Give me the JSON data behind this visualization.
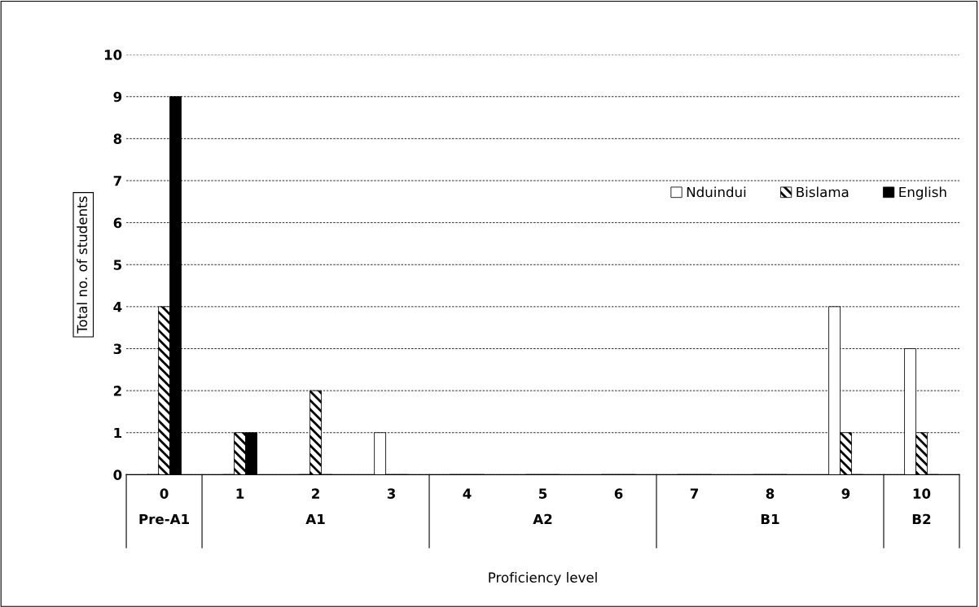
{
  "chart_data": {
    "type": "bar",
    "xlabel": "Proficiency level",
    "ylabel": "Total no. of students",
    "categories": [
      "0\nPre-A1",
      "1",
      "2\nA1",
      "3",
      "4",
      "5\nA2",
      "6",
      "7",
      "8\nB1",
      "9",
      "10\nB2"
    ],
    "series": [
      {
        "name": "Nduindui",
        "color": "#ffffff",
        "values": [
          0,
          0,
          0,
          1,
          0,
          0,
          0,
          0,
          0,
          4,
          3
        ]
      },
      {
        "name": "Bislama",
        "color": "#000000",
        "values": [
          4,
          1,
          2,
          0,
          0,
          0,
          0,
          0,
          0,
          1,
          1
        ]
      },
      {
        "name": "English",
        "color": "#000000",
        "values": [
          9,
          1,
          0,
          0,
          0,
          0,
          0,
          0,
          0,
          0,
          0
        ]
      }
    ],
    "ylim": [
      0,
      10
    ],
    "yticks": [
      0,
      1,
      2,
      3,
      4,
      5,
      6,
      7,
      8,
      9,
      10
    ],
    "grid": "y",
    "legend": "right"
  }
}
